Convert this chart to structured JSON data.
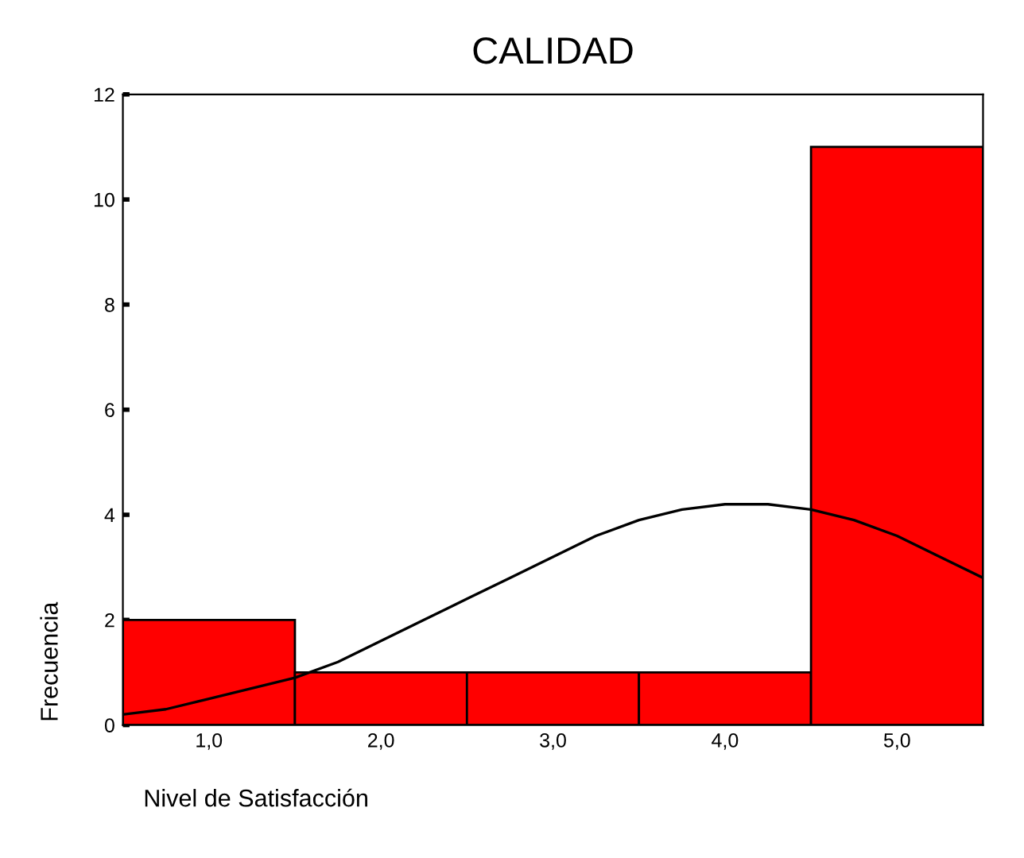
{
  "chart_data": {
    "type": "histogram",
    "title": "CALIDAD",
    "xlabel": "Nivel de Satisfacción",
    "ylabel": "Frecuencia",
    "series": [
      {
        "bins": [
          0.5,
          1.5,
          2.5,
          3.5,
          4.5,
          5.5
        ],
        "values": [
          2,
          1,
          1,
          1,
          11
        ],
        "color": "#ff0000"
      },
      {
        "type": "line",
        "color": "#000000",
        "x": [
          0.5,
          0.75,
          1.0,
          1.25,
          1.5,
          1.75,
          2.0,
          2.25,
          2.5,
          2.75,
          3.0,
          3.25,
          3.5,
          3.75,
          4.0,
          4.25,
          4.5,
          4.75,
          5.0,
          5.25,
          5.5
        ],
        "values": [
          0.2,
          0.3,
          0.5,
          0.7,
          0.9,
          1.2,
          1.6,
          2.0,
          2.4,
          2.8,
          3.2,
          3.6,
          3.9,
          4.1,
          4.2,
          4.2,
          4.1,
          3.9,
          3.6,
          3.2,
          2.8
        ]
      }
    ],
    "xlim": [
      0.5,
      5.5
    ],
    "xticks": [
      {
        "value": 1,
        "label": "1,0"
      },
      {
        "value": 2,
        "label": "2,0"
      },
      {
        "value": 3,
        "label": "3,0"
      },
      {
        "value": 4,
        "label": "4,0"
      },
      {
        "value": 5,
        "label": "5,0"
      }
    ],
    "ylim": [
      0,
      12
    ],
    "yticks": [
      0,
      2,
      4,
      6,
      8,
      10,
      12
    ],
    "grid": false,
    "legend": false
  }
}
